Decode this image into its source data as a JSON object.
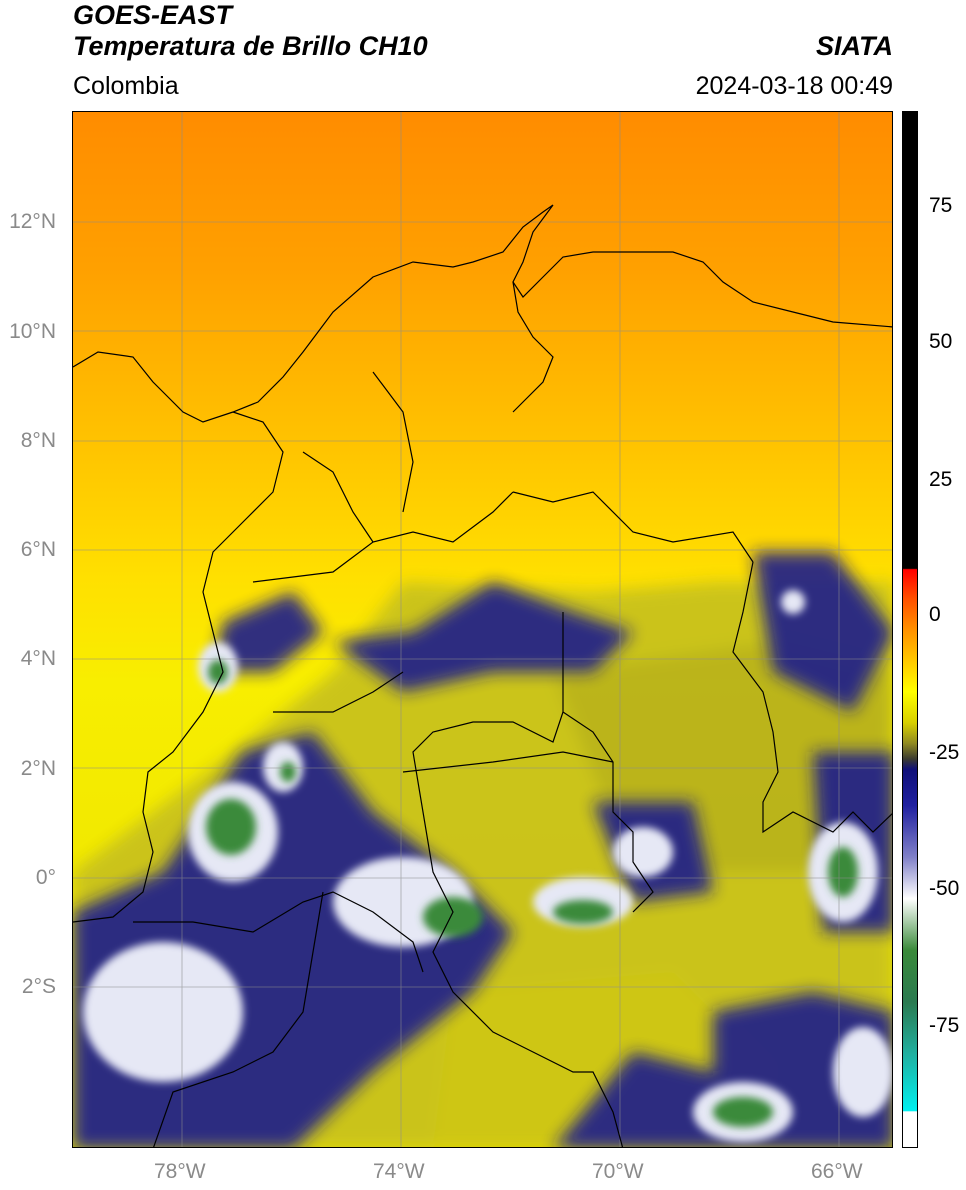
{
  "header": {
    "satellite": "GOES-EAST",
    "product": "Temperatura de Brillo CH10",
    "region": "Colombia",
    "institution": "SIATA",
    "timestamp": "2024-03-18 00:49"
  },
  "map": {
    "lat_ticks": [
      {
        "value": 12,
        "label": "12°N"
      },
      {
        "value": 10,
        "label": "10°N"
      },
      {
        "value": 8,
        "label": "8°N"
      },
      {
        "value": 6,
        "label": "6°N"
      },
      {
        "value": 4,
        "label": "4°N"
      },
      {
        "value": 2,
        "label": "2°N"
      },
      {
        "value": 0,
        "label": "0°"
      },
      {
        "value": -2,
        "label": "2°S"
      }
    ],
    "lon_ticks": [
      {
        "value": -78,
        "label": "78°W"
      },
      {
        "value": -74,
        "label": "74°W"
      },
      {
        "value": -70,
        "label": "70°W"
      },
      {
        "value": -66,
        "label": "66°W"
      }
    ],
    "lon_range": [
      -80,
      -65
    ],
    "lat_range": [
      -5,
      14
    ]
  },
  "colorbar": {
    "labels": [
      "75",
      "50",
      "25",
      "0",
      "-25",
      "-50",
      "-75"
    ],
    "values": [
      75,
      50,
      25,
      0,
      -25,
      -50,
      -75
    ],
    "range": [
      -97,
      90
    ]
  }
}
